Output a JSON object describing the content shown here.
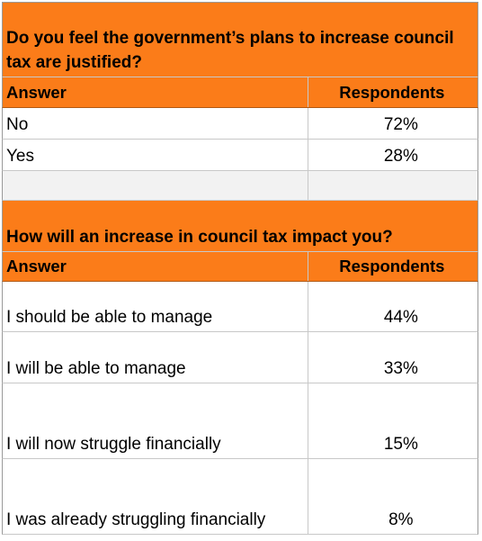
{
  "tables": [
    {
      "question": "Do you feel the government’s plans to increase council tax are justified?",
      "headers": [
        "Answer",
        "Respondents"
      ],
      "rows": [
        {
          "answer": "No",
          "respondents": "72%"
        },
        {
          "answer": "Yes",
          "respondents": "28%"
        }
      ]
    },
    {
      "question": "How will an increase in council tax impact you?",
      "headers": [
        "Answer",
        "Respondents"
      ],
      "rows": [
        {
          "answer": "I should be able to manage",
          "respondents": "44%"
        },
        {
          "answer": "I will be able to manage",
          "respondents": "33%"
        },
        {
          "answer": "I will now struggle financially",
          "respondents": "15%"
        },
        {
          "answer": "I was already struggling financially",
          "respondents": "8%"
        }
      ]
    }
  ],
  "colors": {
    "header_fill": "#fb7c19",
    "border": "#c8c8c8"
  }
}
